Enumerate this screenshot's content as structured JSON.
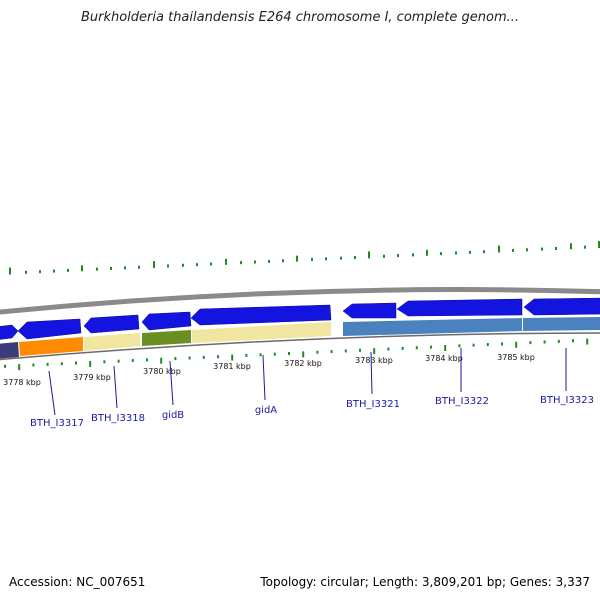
{
  "title": "Burkholderia thailandensis E264 chromosome I, complete genom...",
  "footer": {
    "accession": "Accession: NC_007651",
    "summary": "Topology: circular; Length: 3,809,201 bp; Genes: 3,337"
  },
  "colors": {
    "gene_arrow": "#1010e6",
    "backbone": "#8a8a8a",
    "gc_tick": "#1f8a1f",
    "label": "#1a1aa6"
  },
  "kbp_ticks": [
    "3778 kbp",
    "3779 kbp",
    "3780 kbp",
    "3781 kbp",
    "3782 kbp",
    "3783 kbp",
    "3784 kbp",
    "3785 kbp"
  ],
  "gene_labels": [
    "BTH_I3317",
    "BTH_I3318",
    "gidB",
    "gidA",
    "BTH_I3321",
    "BTH_I3322",
    "BTH_I3323"
  ]
}
